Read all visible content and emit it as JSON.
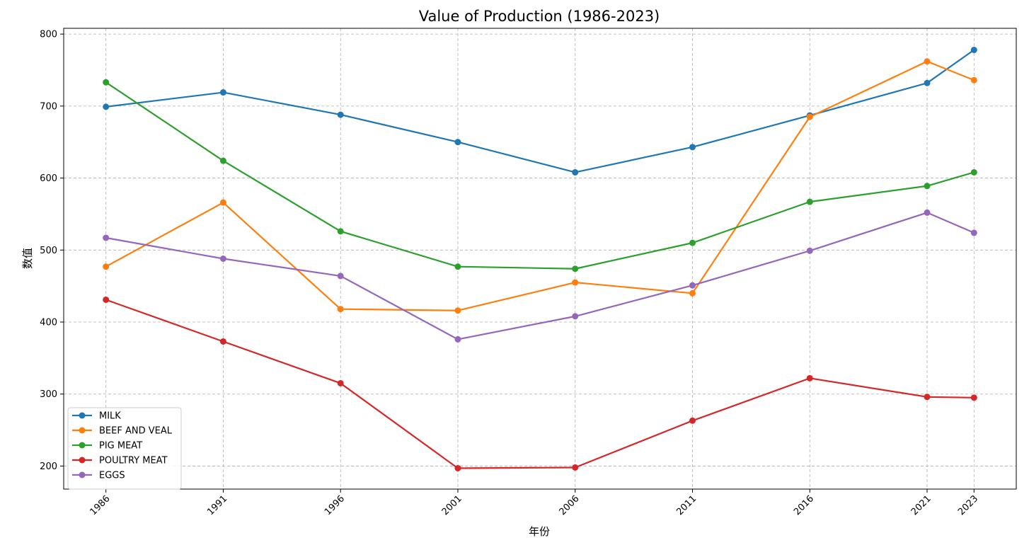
{
  "chart_data": {
    "type": "line",
    "title": "Value of Production (1986-2023)",
    "xlabel": "年份",
    "ylabel": "数值",
    "x": [
      1986,
      1991,
      1996,
      2001,
      2006,
      2011,
      2016,
      2021,
      2023
    ],
    "xlim": [
      1984.2,
      2024.8
    ],
    "ylim": [
      168,
      808
    ],
    "yticks": [
      200,
      300,
      400,
      500,
      600,
      700,
      800
    ],
    "grid": true,
    "legend_position": "lower-left",
    "series": [
      {
        "name": "MILK",
        "color": "#1f77b4",
        "values": [
          699,
          719,
          688,
          650,
          608,
          643,
          687,
          732,
          778
        ]
      },
      {
        "name": "BEEF AND VEAL",
        "color": "#ff7f0e",
        "values": [
          477,
          566,
          418,
          416,
          455,
          440,
          685,
          762,
          736
        ]
      },
      {
        "name": "PIG MEAT",
        "color": "#2ca02c",
        "values": [
          733,
          624,
          526,
          477,
          474,
          510,
          567,
          589,
          608
        ]
      },
      {
        "name": "POULTRY MEAT",
        "color": "#d62728",
        "values": [
          431,
          373,
          315,
          197,
          198,
          263,
          322,
          296,
          295
        ]
      },
      {
        "name": "EGGS",
        "color": "#9467bd",
        "values": [
          517,
          488,
          464,
          376,
          408,
          451,
          499,
          552,
          524
        ]
      }
    ]
  }
}
